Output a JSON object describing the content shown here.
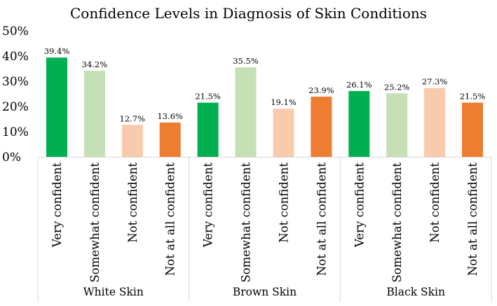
{
  "chart_data": {
    "type": "bar",
    "title": "Confidence Levels in Diagnosis of Skin Conditions",
    "xlabel": "",
    "ylabel": "",
    "ylim": [
      0,
      50
    ],
    "yticks": [
      "0%",
      "10%",
      "20%",
      "30%",
      "40%",
      "50%"
    ],
    "grid": false,
    "legend": "none",
    "colors": {
      "Very confident": "#00b050",
      "Somewhat confident": "#c5e0b4",
      "Not confident": "#f8cbad",
      "Not at all confident": "#ed7d31"
    },
    "groups": [
      {
        "name": "White Skin",
        "bars": [
          {
            "category": "Very confident",
            "value": 39.4,
            "label": "39.4%"
          },
          {
            "category": "Somewhat confident",
            "value": 34.2,
            "label": "34.2%"
          },
          {
            "category": "Not confident",
            "value": 12.7,
            "label": "12.7%"
          },
          {
            "category": "Not at all confident",
            "value": 13.6,
            "label": "13.6%"
          }
        ]
      },
      {
        "name": "Brown Skin",
        "bars": [
          {
            "category": "Very confident",
            "value": 21.5,
            "label": "21.5%"
          },
          {
            "category": "Somewhat confident",
            "value": 35.5,
            "label": "35.5%"
          },
          {
            "category": "Not confident",
            "value": 19.1,
            "label": "19.1%"
          },
          {
            "category": "Not at all confident",
            "value": 23.9,
            "label": "23.9%"
          }
        ]
      },
      {
        "name": "Black Skin",
        "bars": [
          {
            "category": "Very confident",
            "value": 26.1,
            "label": "26.1%"
          },
          {
            "category": "Somewhat confident",
            "value": 25.2,
            "label": "25.2%"
          },
          {
            "category": "Not confident",
            "value": 27.3,
            "label": "27.3%"
          },
          {
            "category": "Not at all confident",
            "value": 21.5,
            "label": "21.5%"
          }
        ]
      }
    ]
  }
}
